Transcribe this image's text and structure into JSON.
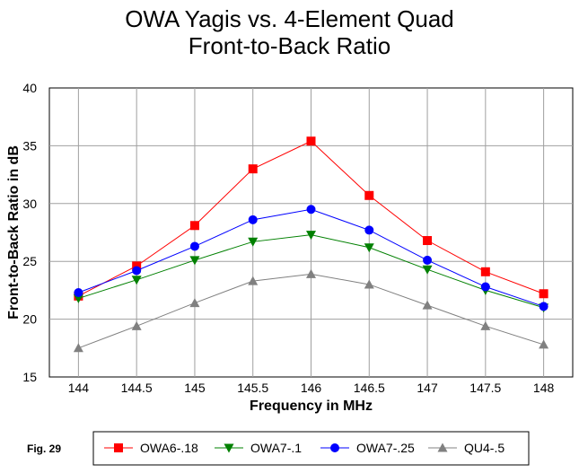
{
  "chart_data": {
    "type": "line",
    "title": "OWA Yagis vs. 4-Element Quad",
    "subtitle": "Front-to-Back Ratio",
    "xlabel": "Frequency in MHz",
    "ylabel": "Front-to-Back Ratio in dB",
    "x": [
      144,
      144.5,
      145,
      145.5,
      146,
      146.5,
      147,
      147.5,
      148
    ],
    "x_tick_labels": [
      "144",
      "144.5",
      "145",
      "145.5",
      "146",
      "146.5",
      "147",
      "147.5",
      "148"
    ],
    "xlim": [
      143.75,
      148.25
    ],
    "ylim": [
      15,
      40
    ],
    "y_ticks": [
      15,
      20,
      25,
      30,
      35,
      40
    ],
    "grid": true,
    "legend_position": "bottom",
    "series": [
      {
        "name": "OWA6-.18",
        "color": "#ff0000",
        "marker": "square",
        "values": [
          22.0,
          24.6,
          28.1,
          33.0,
          35.4,
          30.7,
          26.8,
          24.1,
          22.2
        ]
      },
      {
        "name": "OWA7-.1",
        "color": "#008000",
        "marker": "triangle-down",
        "values": [
          21.8,
          23.4,
          25.1,
          26.7,
          27.3,
          26.2,
          24.3,
          22.5,
          21.0
        ]
      },
      {
        "name": "OWA7-.25",
        "color": "#0000ff",
        "marker": "circle",
        "values": [
          22.3,
          24.2,
          26.3,
          28.6,
          29.5,
          27.7,
          25.1,
          22.8,
          21.1
        ]
      },
      {
        "name": "QU4-.5",
        "color": "#808080",
        "marker": "triangle-up",
        "values": [
          17.5,
          19.4,
          21.4,
          23.3,
          23.9,
          23.0,
          21.2,
          19.4,
          17.8
        ]
      }
    ]
  },
  "figure_label": "Fig. 29"
}
